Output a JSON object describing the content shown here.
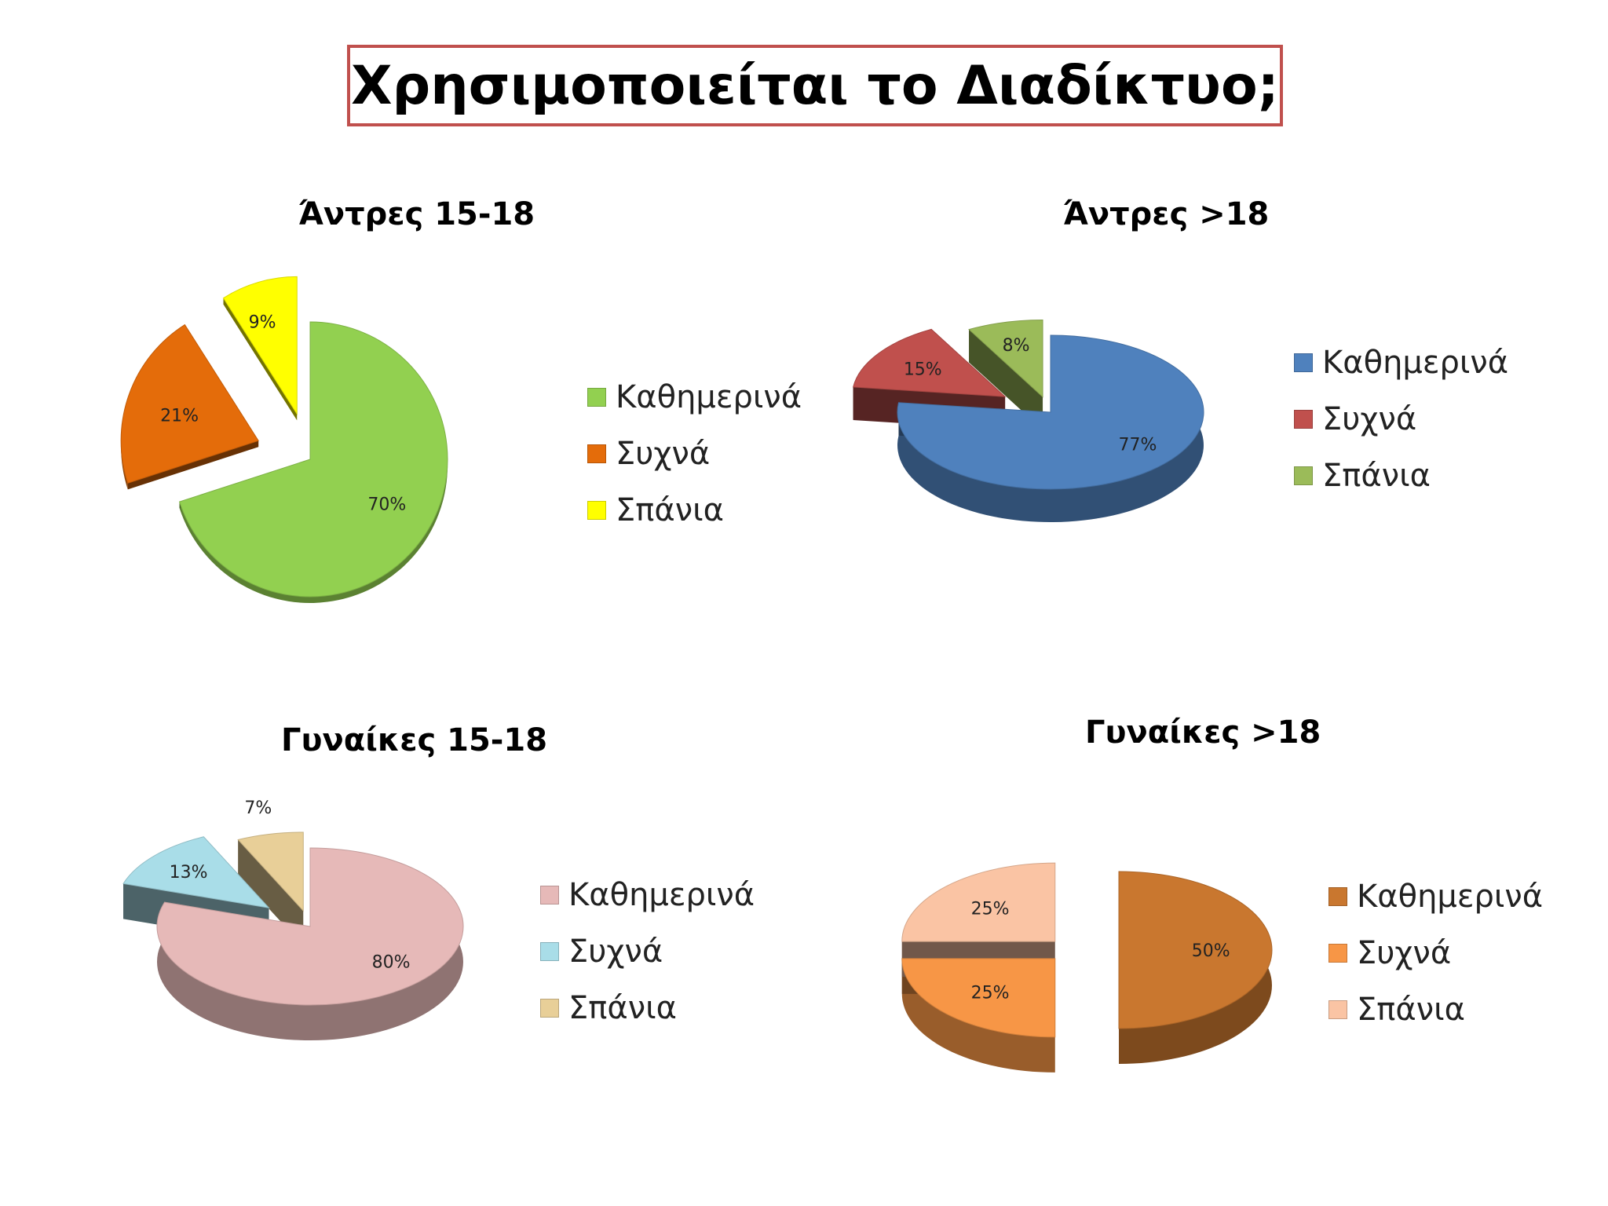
{
  "page": {
    "title": "Χρησιμοποιείται το Διαδίκτυο;"
  },
  "chart_data": [
    {
      "type": "pie",
      "title": "Άντρες 15-18",
      "categories": [
        "Καθημερινά",
        "Συχνά",
        "Σπάνια"
      ],
      "values": [
        70,
        21,
        9
      ],
      "labels": [
        "70%",
        "21%",
        "9%"
      ],
      "colors": [
        "#92d050",
        "#e46c0a",
        "#ffff00"
      ],
      "legend": "right"
    },
    {
      "type": "pie",
      "title": "Άντρες >18",
      "categories": [
        "Καθημερινά",
        "Συχνά",
        "Σπάνια"
      ],
      "values": [
        77,
        15,
        8
      ],
      "labels": [
        "77%",
        "15%",
        "8%"
      ],
      "colors": [
        "#4f81bd",
        "#c0504d",
        "#9bbb59"
      ],
      "legend": "right"
    },
    {
      "type": "pie",
      "title": "Γυναίκες 15-18",
      "categories": [
        "Καθημερινά",
        "Συχνά",
        "Σπάνια"
      ],
      "values": [
        80,
        13,
        7
      ],
      "labels": [
        "80%",
        "13%",
        "7%"
      ],
      "colors": [
        "#e6b9b8",
        "#a9dde8",
        "#e8cf98"
      ],
      "legend": "right"
    },
    {
      "type": "pie",
      "title": "Γυναίκες >18",
      "categories": [
        "Καθημερινά",
        "Συχνά",
        "Σπάνια"
      ],
      "values": [
        50,
        25,
        25
      ],
      "labels": [
        "50%",
        "25%",
        "25%"
      ],
      "colors": [
        "#c9772f",
        "#f79646",
        "#fac4a4"
      ],
      "legend": "right"
    }
  ]
}
